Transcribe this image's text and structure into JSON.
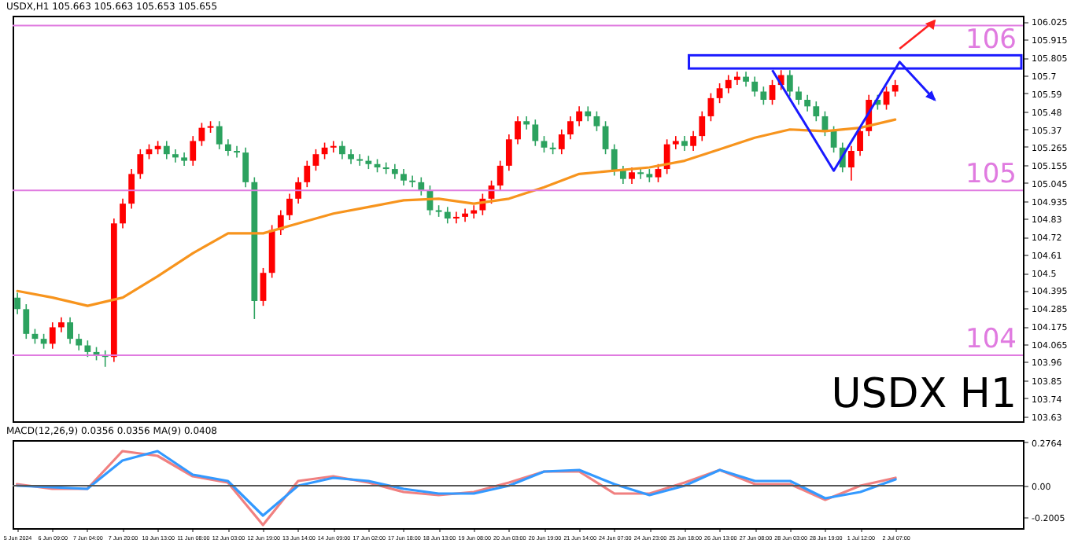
{
  "chart_data": [
    {
      "type": "candlestick",
      "title": "USDX,H1 105.663 105.663 105.653 105.655",
      "categories": [
        "5 Jun 2024",
        null,
        null,
        null,
        "6 Jun 09:00",
        null,
        null,
        null,
        "7 Jun 04:00",
        null,
        null,
        null,
        "7 Jun 20:00",
        null,
        null,
        null,
        "10 Jun 13:00",
        null,
        null,
        null,
        "11 Jun 08:00",
        null,
        null,
        null,
        "12 Jun 03:00",
        null,
        null,
        null,
        "12 Jun 19:00",
        null,
        null,
        null,
        "13 Jun 14:00",
        null,
        null,
        null,
        "14 Jun 09:00",
        null,
        null,
        null,
        "17 Jun 02:00",
        null,
        null,
        null,
        "17 Jun 18:00",
        null,
        null,
        null,
        "18 Jun 13:00",
        null,
        null,
        null,
        "19 Jun 08:00",
        null,
        null,
        null,
        "20 Jun 03:00",
        null,
        null,
        null,
        "20 Jun 19:00",
        null,
        null,
        null,
        "21 Jun 14:00",
        null,
        null,
        null,
        "24 Jun 07:00",
        null,
        null,
        null,
        "24 Jun 23:00",
        null,
        null,
        null,
        "25 Jun 18:00",
        null,
        null,
        null,
        "26 Jun 13:00",
        null,
        null,
        null,
        "27 Jun 08:00",
        null,
        null,
        null,
        "28 Jun 03:00",
        null,
        null,
        null,
        "28 Jun 19:00",
        null,
        null,
        null,
        "1 Jul 12:00",
        null,
        null,
        null,
        "2 Jul 07:00",
        null,
        null,
        null,
        null,
        null,
        null,
        null,
        null,
        null,
        null,
        null,
        null,
        null,
        null
      ],
      "ohlc": [
        [
          104.35,
          104.38,
          104.25,
          104.28
        ],
        [
          104.28,
          104.31,
          104.1,
          104.13
        ],
        [
          104.13,
          104.16,
          104.07,
          104.1
        ],
        [
          104.1,
          104.13,
          104.04,
          104.07
        ],
        [
          104.07,
          104.2,
          104.04,
          104.17
        ],
        [
          104.17,
          104.23,
          104.14,
          104.2
        ],
        [
          104.2,
          104.23,
          104.07,
          104.1
        ],
        [
          104.1,
          104.13,
          104.03,
          104.06
        ],
        [
          104.06,
          104.09,
          103.99,
          104.02
        ],
        [
          104.02,
          104.05,
          103.97,
          104.0
        ],
        [
          104.0,
          104.03,
          103.93,
          103.99
        ],
        [
          103.99,
          104.83,
          103.96,
          104.8
        ],
        [
          104.8,
          104.95,
          104.77,
          104.92
        ],
        [
          104.92,
          105.13,
          104.89,
          105.1
        ],
        [
          105.1,
          105.25,
          105.07,
          105.22
        ],
        [
          105.22,
          105.28,
          105.19,
          105.25
        ],
        [
          105.25,
          105.3,
          105.22,
          105.27
        ],
        [
          105.27,
          105.3,
          105.19,
          105.22
        ],
        [
          105.22,
          105.25,
          105.17,
          105.2
        ],
        [
          105.2,
          105.23,
          105.15,
          105.18
        ],
        [
          105.18,
          105.33,
          105.15,
          105.3
        ],
        [
          105.3,
          105.41,
          105.27,
          105.38
        ],
        [
          105.38,
          105.42,
          105.35,
          105.39
        ],
        [
          105.39,
          105.42,
          105.25,
          105.28
        ],
        [
          105.28,
          105.31,
          105.21,
          105.24
        ],
        [
          105.24,
          105.27,
          105.2,
          105.23
        ],
        [
          105.23,
          105.26,
          105.02,
          105.05
        ],
        [
          105.05,
          105.08,
          104.22,
          104.33
        ],
        [
          104.33,
          104.53,
          104.3,
          104.5
        ],
        [
          104.5,
          104.79,
          104.47,
          104.76
        ],
        [
          104.76,
          104.88,
          104.73,
          104.85
        ],
        [
          104.85,
          104.98,
          104.82,
          104.95
        ],
        [
          104.95,
          105.08,
          104.92,
          105.05
        ],
        [
          105.05,
          105.18,
          105.02,
          105.15
        ],
        [
          105.15,
          105.25,
          105.12,
          105.22
        ],
        [
          105.22,
          105.29,
          105.19,
          105.26
        ],
        [
          105.26,
          105.3,
          105.23,
          105.27
        ],
        [
          105.27,
          105.3,
          105.19,
          105.22
        ],
        [
          105.22,
          105.25,
          105.16,
          105.19
        ],
        [
          105.19,
          105.22,
          105.15,
          105.18
        ],
        [
          105.18,
          105.21,
          105.13,
          105.16
        ],
        [
          105.16,
          105.19,
          105.11,
          105.14
        ],
        [
          105.14,
          105.17,
          105.1,
          105.13
        ],
        [
          105.13,
          105.16,
          105.07,
          105.1
        ],
        [
          105.1,
          105.13,
          105.03,
          105.06
        ],
        [
          105.06,
          105.09,
          105.02,
          105.05
        ],
        [
          105.05,
          105.08,
          104.97,
          105.0
        ],
        [
          105.0,
          105.03,
          104.85,
          104.88
        ],
        [
          104.88,
          104.91,
          104.84,
          104.87
        ],
        [
          104.87,
          104.9,
          104.8,
          104.83
        ],
        [
          104.83,
          104.87,
          104.8,
          104.84
        ],
        [
          104.84,
          104.89,
          104.81,
          104.86
        ],
        [
          104.86,
          104.91,
          104.83,
          104.88
        ],
        [
          104.88,
          104.98,
          104.85,
          104.95
        ],
        [
          104.95,
          105.06,
          104.92,
          105.03
        ],
        [
          105.03,
          105.18,
          105.0,
          105.15
        ],
        [
          105.15,
          105.34,
          105.12,
          105.31
        ],
        [
          105.31,
          105.45,
          105.28,
          105.42
        ],
        [
          105.42,
          105.45,
          105.37,
          105.4
        ],
        [
          105.4,
          105.43,
          105.27,
          105.3
        ],
        [
          105.3,
          105.33,
          105.23,
          105.26
        ],
        [
          105.26,
          105.29,
          105.22,
          105.25
        ],
        [
          105.25,
          105.37,
          105.22,
          105.34
        ],
        [
          105.34,
          105.45,
          105.31,
          105.42
        ],
        [
          105.42,
          105.51,
          105.39,
          105.48
        ],
        [
          105.48,
          105.51,
          105.42,
          105.45
        ],
        [
          105.45,
          105.48,
          105.36,
          105.39
        ],
        [
          105.39,
          105.42,
          105.22,
          105.25
        ],
        [
          105.25,
          105.28,
          105.09,
          105.12
        ],
        [
          105.12,
          105.15,
          105.04,
          105.07
        ],
        [
          105.07,
          105.14,
          105.04,
          105.11
        ],
        [
          105.11,
          105.14,
          105.07,
          105.1
        ],
        [
          105.1,
          105.13,
          105.05,
          105.08
        ],
        [
          105.08,
          105.16,
          105.05,
          105.13
        ],
        [
          105.13,
          105.31,
          105.1,
          105.28
        ],
        [
          105.28,
          105.33,
          105.25,
          105.3
        ],
        [
          105.3,
          105.33,
          105.24,
          105.27
        ],
        [
          105.27,
          105.36,
          105.24,
          105.33
        ],
        [
          105.33,
          105.48,
          105.3,
          105.45
        ],
        [
          105.45,
          105.59,
          105.42,
          105.56
        ],
        [
          105.56,
          105.65,
          105.53,
          105.62
        ],
        [
          105.62,
          105.7,
          105.59,
          105.67
        ],
        [
          105.67,
          105.72,
          105.64,
          105.69
        ],
        [
          105.69,
          105.72,
          105.63,
          105.66
        ],
        [
          105.66,
          105.69,
          105.57,
          105.6
        ],
        [
          105.6,
          105.63,
          105.52,
          105.55
        ],
        [
          105.55,
          105.67,
          105.52,
          105.64
        ],
        [
          105.64,
          105.73,
          105.61,
          105.7
        ],
        [
          105.7,
          105.73,
          105.57,
          105.6
        ],
        [
          105.6,
          105.63,
          105.52,
          105.55
        ],
        [
          105.55,
          105.58,
          105.48,
          105.51
        ],
        [
          105.51,
          105.54,
          105.42,
          105.45
        ],
        [
          105.45,
          105.48,
          105.33,
          105.36
        ],
        [
          105.36,
          105.39,
          105.23,
          105.26
        ],
        [
          105.26,
          105.29,
          105.11,
          105.14
        ],
        [
          105.14,
          105.27,
          105.06,
          105.24
        ],
        [
          105.24,
          105.39,
          105.21,
          105.36
        ],
        [
          105.36,
          105.58,
          105.33,
          105.55
        ],
        [
          105.55,
          105.58,
          105.49,
          105.52
        ],
        [
          105.52,
          105.63,
          105.49,
          105.6
        ],
        [
          105.6,
          105.67,
          105.57,
          105.64
        ],
        null,
        null,
        null,
        null,
        null,
        null,
        null,
        null,
        null,
        null,
        null,
        null,
        null,
        null
      ],
      "series": [
        {
          "type": "line",
          "color": "#f7941d",
          "x": [
            "5 Jun 2024",
            "6 Jun 09:00",
            "7 Jun 04:00",
            "7 Jun 20:00",
            "10 Jun 13:00",
            "11 Jun 08:00",
            "12 Jun 03:00",
            "12 Jun 19:00",
            "13 Jun 14:00",
            "14 Jun 09:00",
            "17 Jun 02:00",
            "17 Jun 18:00",
            "18 Jun 13:00",
            "19 Jun 08:00",
            "20 Jun 03:00",
            "20 Jun 19:00",
            "21 Jun 14:00",
            "24 Jun 07:00",
            "24 Jun 23:00",
            "25 Jun 18:00",
            "26 Jun 13:00",
            "27 Jun 08:00",
            "28 Jun 03:00",
            "28 Jun 19:00",
            "1 Jul 12:00",
            "2 Jul 07:00"
          ],
          "values": [
            104.39,
            104.35,
            104.3,
            104.35,
            104.48,
            104.62,
            104.74,
            104.74,
            104.8,
            104.86,
            104.9,
            104.94,
            104.95,
            104.92,
            104.95,
            105.02,
            105.1,
            105.12,
            105.14,
            105.18,
            105.25,
            105.32,
            105.37,
            105.36,
            105.38,
            105.43
          ]
        }
      ],
      "ylim": [
        103.6,
        106.06
      ],
      "yticks": [
        106.025,
        105.915,
        105.805,
        105.7,
        105.59,
        105.48,
        105.37,
        105.265,
        105.155,
        105.045,
        104.935,
        104.83,
        104.72,
        104.61,
        104.5,
        104.395,
        104.285,
        104.175,
        104.065,
        103.96,
        103.85,
        103.74,
        103.63
      ],
      "tick_labels": "y",
      "ref_lines": [
        {
          "axis": "y",
          "value": 106,
          "label": "106",
          "color": "#e07be0"
        },
        {
          "axis": "y",
          "value": 105,
          "label": "105",
          "color": "#e07be0"
        },
        {
          "axis": "y",
          "value": 104,
          "label": "104",
          "color": "#e07be0"
        }
      ],
      "annotations": [
        "USDX H1"
      ]
    },
    {
      "type": "line",
      "title": "MACD(12,26,9) 0.0356 0.0356 MA(9) 0.0408",
      "categories": [
        "5 Jun 2024",
        null,
        null,
        null,
        "6 Jun 09:00",
        null,
        null,
        null,
        "7 Jun 04:00",
        null,
        null,
        null,
        "7 Jun 20:00",
        null,
        null,
        null,
        "10 Jun 13:00",
        null,
        null,
        null,
        "11 Jun 08:00",
        null,
        null,
        null,
        "12 Jun 03:00",
        null,
        null,
        null,
        "12 Jun 19:00",
        null,
        null,
        null,
        "13 Jun 14:00",
        null,
        null,
        null,
        "14 Jun 09:00",
        null,
        null,
        null,
        "17 Jun 02:00",
        null,
        null,
        null,
        "17 Jun 18:00",
        null,
        null,
        null,
        "18 Jun 13:00",
        null,
        null,
        null,
        "19 Jun 08:00",
        null,
        null,
        null,
        "20 Jun 03:00",
        null,
        null,
        null,
        "20 Jun 19:00",
        null,
        null,
        null,
        "21 Jun 14:00",
        null,
        null,
        null,
        "24 Jun 07:00",
        null,
        null,
        null,
        "24 Jun 23:00",
        null,
        null,
        null,
        "25 Jun 18:00",
        null,
        null,
        null,
        "26 Jun 13:00",
        null,
        null,
        null,
        "27 Jun 08:00",
        null,
        null,
        null,
        "28 Jun 03:00",
        null,
        null,
        null,
        "28 Jun 19:00",
        null,
        null,
        null,
        "1 Jul 12:00",
        null,
        null,
        null,
        "2 Jul 07:00",
        null,
        null,
        null,
        null,
        null,
        null,
        null,
        null,
        null,
        null,
        null,
        null,
        null,
        null
      ],
      "series": [
        {
          "color": "#f08080",
          "x": [
            "5 Jun 2024",
            "6 Jun 09:00",
            "7 Jun 04:00",
            "7 Jun 20:00",
            "10 Jun 13:00",
            "11 Jun 08:00",
            "12 Jun 03:00",
            "12 Jun 19:00",
            "13 Jun 14:00",
            "14 Jun 09:00",
            "17 Jun 02:00",
            "17 Jun 18:00",
            "18 Jun 13:00",
            "19 Jun 08:00",
            "20 Jun 03:00",
            "20 Jun 19:00",
            "21 Jun 14:00",
            "24 Jun 07:00",
            "24 Jun 23:00",
            "25 Jun 18:00",
            "26 Jun 13:00",
            "27 Jun 08:00",
            "28 Jun 03:00",
            "28 Jun 19:00",
            "1 Jul 12:00",
            "2 Jul 07:00"
          ],
          "values": [
            0.01,
            -0.02,
            -0.02,
            0.22,
            0.19,
            0.06,
            0.02,
            -0.25,
            0.03,
            0.06,
            0.02,
            -0.04,
            -0.06,
            -0.04,
            0.02,
            0.09,
            0.09,
            -0.05,
            -0.05,
            0.02,
            0.1,
            0.01,
            0.01,
            -0.09,
            0.0,
            0.05
          ]
        },
        {
          "color": "#3399ff",
          "x": [
            "5 Jun 2024",
            "6 Jun 09:00",
            "7 Jun 04:00",
            "7 Jun 20:00",
            "10 Jun 13:00",
            "11 Jun 08:00",
            "12 Jun 03:00",
            "12 Jun 19:00",
            "13 Jun 14:00",
            "14 Jun 09:00",
            "17 Jun 02:00",
            "17 Jun 18:00",
            "18 Jun 13:00",
            "19 Jun 08:00",
            "20 Jun 03:00",
            "20 Jun 19:00",
            "21 Jun 14:00",
            "24 Jun 07:00",
            "24 Jun 23:00",
            "25 Jun 18:00",
            "26 Jun 13:00",
            "27 Jun 08:00",
            "28 Jun 03:00",
            "28 Jun 19:00",
            "1 Jul 12:00",
            "2 Jul 07:00"
          ],
          "values": [
            0.0,
            -0.01,
            -0.02,
            0.16,
            0.22,
            0.07,
            0.03,
            -0.19,
            0.0,
            0.05,
            0.03,
            -0.02,
            -0.05,
            -0.05,
            0.0,
            0.09,
            0.1,
            0.01,
            -0.06,
            0.0,
            0.1,
            0.03,
            0.03,
            -0.08,
            -0.04,
            0.04
          ]
        }
      ],
      "ylim": [
        -0.27,
        0.29
      ],
      "yticks": [
        0.2764,
        {
          "value": 0,
          "label": "0.00"
        },
        -0.2005
      ],
      "ref_lines": [
        {
          "axis": "y",
          "value": 0,
          "color": "#555555"
        }
      ]
    }
  ]
}
